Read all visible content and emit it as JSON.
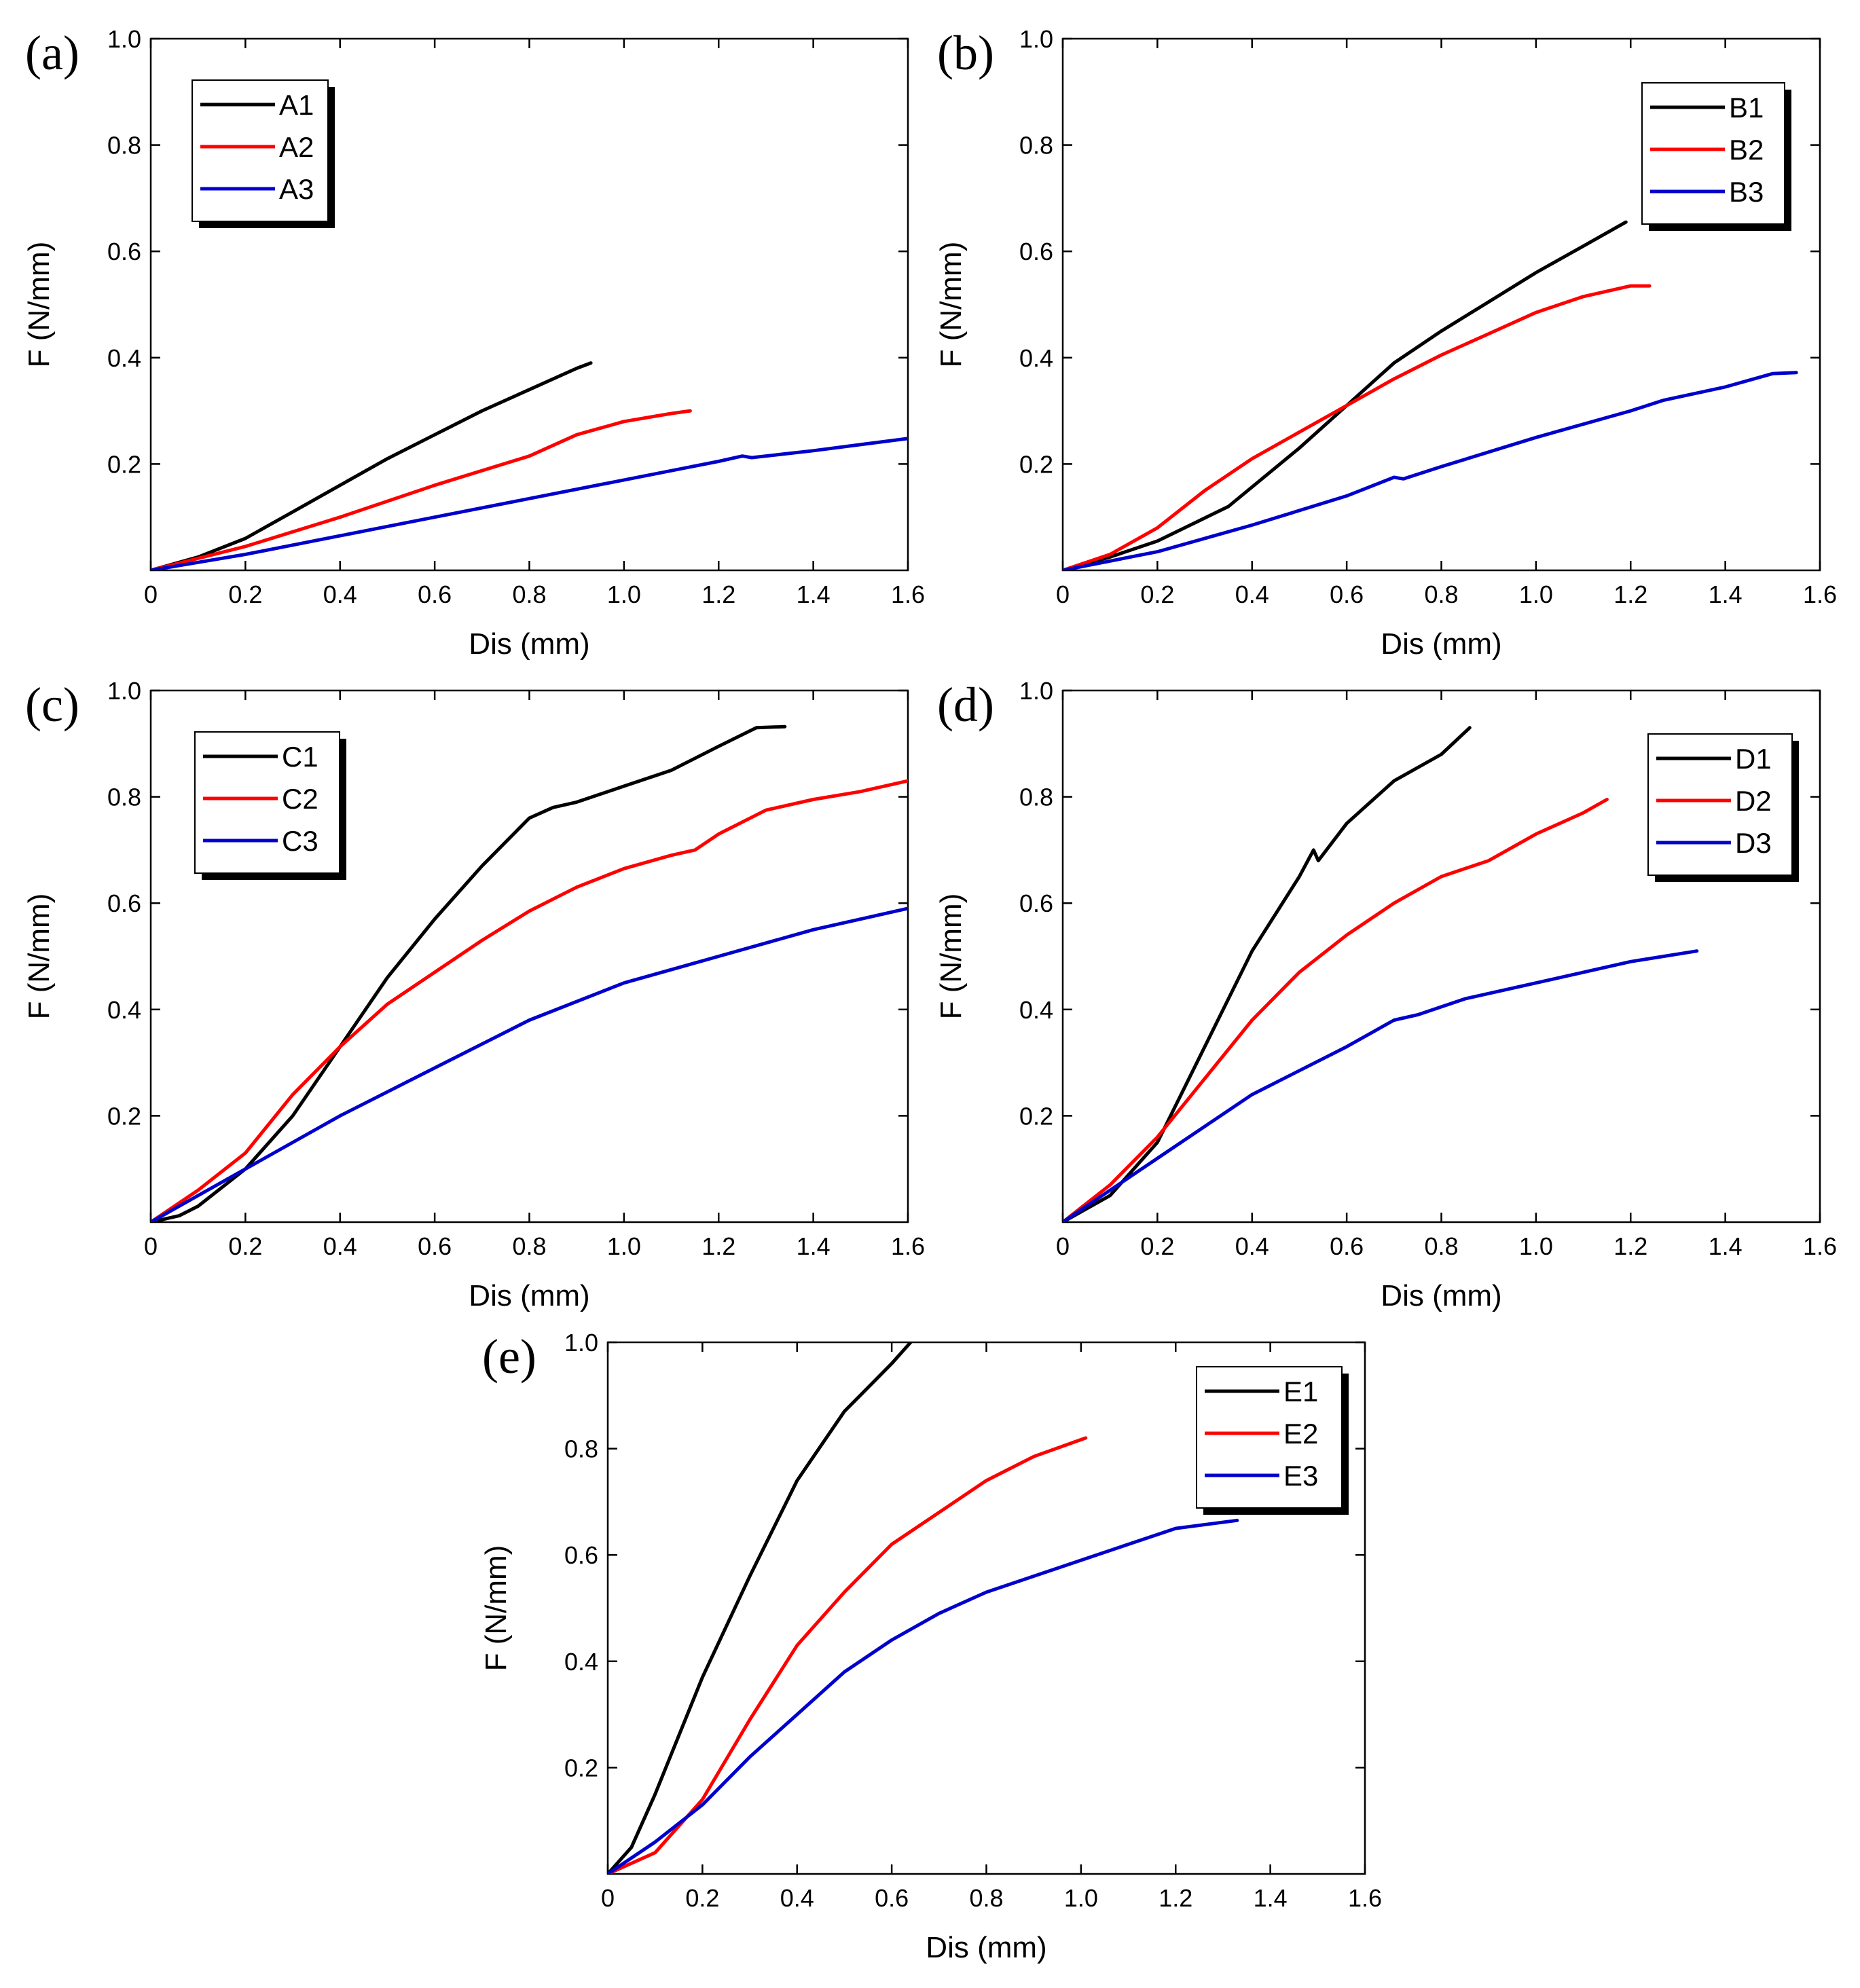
{
  "chart_data": [
    {
      "type": "line",
      "panel_label": "(a)",
      "title": "",
      "xlabel": "Dis (mm)",
      "ylabel": "F (N/mm)",
      "xlim": [
        0,
        1.6
      ],
      "ylim": [
        0,
        1.0
      ],
      "xticks": [
        "0",
        "0.2",
        "0.4",
        "0.6",
        "0.8",
        "1.0",
        "1.2",
        "1.4",
        "1.6"
      ],
      "yticks": [
        "0.2",
        "0.4",
        "0.6",
        "0.8",
        "1.0"
      ],
      "legend_position": "top-left",
      "series": [
        {
          "name": "A1",
          "color": "#000000",
          "points": [
            [
              0,
              0
            ],
            [
              0.1,
              0.025
            ],
            [
              0.2,
              0.06
            ],
            [
              0.3,
              0.11
            ],
            [
              0.4,
              0.16
            ],
            [
              0.5,
              0.21
            ],
            [
              0.6,
              0.255
            ],
            [
              0.7,
              0.3
            ],
            [
              0.8,
              0.34
            ],
            [
              0.9,
              0.38
            ],
            [
              0.93,
              0.39
            ]
          ]
        },
        {
          "name": "A2",
          "color": "#ff0000",
          "points": [
            [
              0,
              0
            ],
            [
              0.2,
              0.045
            ],
            [
              0.4,
              0.1
            ],
            [
              0.6,
              0.16
            ],
            [
              0.8,
              0.215
            ],
            [
              0.9,
              0.255
            ],
            [
              1.0,
              0.28
            ],
            [
              1.1,
              0.295
            ],
            [
              1.14,
              0.3
            ]
          ]
        },
        {
          "name": "A3",
          "color": "#0000cc",
          "points": [
            [
              0,
              0
            ],
            [
              0.2,
              0.03
            ],
            [
              0.4,
              0.065
            ],
            [
              0.6,
              0.1
            ],
            [
              0.8,
              0.135
            ],
            [
              1.0,
              0.17
            ],
            [
              1.2,
              0.205
            ],
            [
              1.25,
              0.215
            ],
            [
              1.27,
              0.212
            ],
            [
              1.4,
              0.225
            ],
            [
              1.6,
              0.248
            ]
          ]
        }
      ]
    },
    {
      "type": "line",
      "panel_label": "(b)",
      "title": "",
      "xlabel": "Dis (mm)",
      "ylabel": "F (N/mm)",
      "xlim": [
        0,
        1.6
      ],
      "ylim": [
        0,
        1.0
      ],
      "xticks": [
        "0",
        "0.2",
        "0.4",
        "0.6",
        "0.8",
        "1.0",
        "1.2",
        "1.4",
        "1.6"
      ],
      "yticks": [
        "0.2",
        "0.4",
        "0.6",
        "0.8",
        "1.0"
      ],
      "legend_position": "top-right",
      "series": [
        {
          "name": "B1",
          "color": "#000000",
          "points": [
            [
              0,
              0
            ],
            [
              0.1,
              0.025
            ],
            [
              0.2,
              0.055
            ],
            [
              0.35,
              0.12
            ],
            [
              0.5,
              0.23
            ],
            [
              0.6,
              0.31
            ],
            [
              0.7,
              0.39
            ],
            [
              0.8,
              0.45
            ],
            [
              0.9,
              0.505
            ],
            [
              1.0,
              0.56
            ],
            [
              1.1,
              0.61
            ],
            [
              1.19,
              0.655
            ]
          ]
        },
        {
          "name": "B2",
          "color": "#ff0000",
          "points": [
            [
              0,
              0
            ],
            [
              0.1,
              0.03
            ],
            [
              0.2,
              0.08
            ],
            [
              0.3,
              0.15
            ],
            [
              0.4,
              0.21
            ],
            [
              0.5,
              0.26
            ],
            [
              0.6,
              0.31
            ],
            [
              0.7,
              0.36
            ],
            [
              0.8,
              0.405
            ],
            [
              0.9,
              0.445
            ],
            [
              1.0,
              0.485
            ],
            [
              1.1,
              0.515
            ],
            [
              1.2,
              0.535
            ],
            [
              1.24,
              0.535
            ]
          ]
        },
        {
          "name": "B3",
          "color": "#0000cc",
          "points": [
            [
              0,
              0
            ],
            [
              0.2,
              0.035
            ],
            [
              0.4,
              0.085
            ],
            [
              0.6,
              0.14
            ],
            [
              0.7,
              0.175
            ],
            [
              0.72,
              0.172
            ],
            [
              0.8,
              0.195
            ],
            [
              1.0,
              0.25
            ],
            [
              1.2,
              0.3
            ],
            [
              1.27,
              0.32
            ],
            [
              1.4,
              0.345
            ],
            [
              1.5,
              0.37
            ],
            [
              1.55,
              0.372
            ]
          ]
        }
      ]
    },
    {
      "type": "line",
      "panel_label": "(c)",
      "title": "",
      "xlabel": "Dis (mm)",
      "ylabel": "F (N/mm)",
      "xlim": [
        0,
        1.6
      ],
      "ylim": [
        0,
        1.0
      ],
      "xticks": [
        "0",
        "0.2",
        "0.4",
        "0.6",
        "0.8",
        "1.0",
        "1.2",
        "1.4",
        "1.6"
      ],
      "yticks": [
        "0.2",
        "0.4",
        "0.6",
        "0.8",
        "1.0"
      ],
      "legend_position": "top-left",
      "series": [
        {
          "name": "C1",
          "color": "#000000",
          "points": [
            [
              0,
              0
            ],
            [
              0.06,
              0.012
            ],
            [
              0.1,
              0.03
            ],
            [
              0.2,
              0.1
            ],
            [
              0.3,
              0.2
            ],
            [
              0.4,
              0.33
            ],
            [
              0.5,
              0.46
            ],
            [
              0.6,
              0.57
            ],
            [
              0.7,
              0.67
            ],
            [
              0.8,
              0.76
            ],
            [
              0.85,
              0.78
            ],
            [
              0.9,
              0.79
            ],
            [
              1.0,
              0.82
            ],
            [
              1.1,
              0.85
            ],
            [
              1.2,
              0.895
            ],
            [
              1.28,
              0.93
            ],
            [
              1.34,
              0.932
            ]
          ]
        },
        {
          "name": "C2",
          "color": "#ff0000",
          "points": [
            [
              0,
              0
            ],
            [
              0.1,
              0.06
            ],
            [
              0.2,
              0.13
            ],
            [
              0.3,
              0.24
            ],
            [
              0.4,
              0.33
            ],
            [
              0.5,
              0.41
            ],
            [
              0.6,
              0.47
            ],
            [
              0.7,
              0.53
            ],
            [
              0.8,
              0.585
            ],
            [
              0.9,
              0.63
            ],
            [
              1.0,
              0.665
            ],
            [
              1.1,
              0.69
            ],
            [
              1.15,
              0.7
            ],
            [
              1.2,
              0.73
            ],
            [
              1.3,
              0.775
            ],
            [
              1.4,
              0.795
            ],
            [
              1.5,
              0.81
            ],
            [
              1.6,
              0.83
            ]
          ]
        },
        {
          "name": "C3",
          "color": "#0000cc",
          "points": [
            [
              0,
              0
            ],
            [
              0.2,
              0.1
            ],
            [
              0.4,
              0.2
            ],
            [
              0.6,
              0.29
            ],
            [
              0.8,
              0.38
            ],
            [
              1.0,
              0.45
            ],
            [
              1.2,
              0.5
            ],
            [
              1.4,
              0.55
            ],
            [
              1.6,
              0.59
            ]
          ]
        }
      ]
    },
    {
      "type": "line",
      "panel_label": "(d)",
      "title": "",
      "xlabel": "Dis (mm)",
      "ylabel": "F (N/mm)",
      "xlim": [
        0,
        1.6
      ],
      "ylim": [
        0,
        1.0
      ],
      "xticks": [
        "0",
        "0.2",
        "0.4",
        "0.6",
        "0.8",
        "1.0",
        "1.2",
        "1.4",
        "1.6"
      ],
      "yticks": [
        "0.2",
        "0.4",
        "0.6",
        "0.8",
        "1.0"
      ],
      "legend_position": "top-right",
      "series": [
        {
          "name": "D1",
          "color": "#000000",
          "points": [
            [
              0,
              0
            ],
            [
              0.1,
              0.05
            ],
            [
              0.2,
              0.15
            ],
            [
              0.3,
              0.33
            ],
            [
              0.4,
              0.51
            ],
            [
              0.5,
              0.65
            ],
            [
              0.53,
              0.7
            ],
            [
              0.54,
              0.68
            ],
            [
              0.6,
              0.75
            ],
            [
              0.7,
              0.83
            ],
            [
              0.8,
              0.88
            ],
            [
              0.86,
              0.93
            ]
          ]
        },
        {
          "name": "D2",
          "color": "#ff0000",
          "points": [
            [
              0,
              0
            ],
            [
              0.1,
              0.07
            ],
            [
              0.2,
              0.16
            ],
            [
              0.3,
              0.27
            ],
            [
              0.4,
              0.38
            ],
            [
              0.5,
              0.47
            ],
            [
              0.6,
              0.54
            ],
            [
              0.7,
              0.6
            ],
            [
              0.8,
              0.65
            ],
            [
              0.9,
              0.68
            ],
            [
              1.0,
              0.73
            ],
            [
              1.1,
              0.77
            ],
            [
              1.15,
              0.795
            ]
          ]
        },
        {
          "name": "D3",
          "color": "#0000cc",
          "points": [
            [
              0,
              0
            ],
            [
              0.2,
              0.12
            ],
            [
              0.4,
              0.24
            ],
            [
              0.6,
              0.33
            ],
            [
              0.7,
              0.38
            ],
            [
              0.75,
              0.39
            ],
            [
              0.8,
              0.405
            ],
            [
              0.85,
              0.42
            ],
            [
              1.0,
              0.45
            ],
            [
              1.2,
              0.49
            ],
            [
              1.34,
              0.51
            ]
          ]
        }
      ]
    },
    {
      "type": "line",
      "panel_label": "(e)",
      "title": "",
      "xlabel": "Dis (mm)",
      "ylabel": "F (N/mm)",
      "xlim": [
        0,
        1.6
      ],
      "ylim": [
        0,
        1.0
      ],
      "xticks": [
        "0",
        "0.2",
        "0.4",
        "0.6",
        "0.8",
        "1.0",
        "1.2",
        "1.4",
        "1.6"
      ],
      "yticks": [
        "0.2",
        "0.4",
        "0.6",
        "0.8",
        "1.0"
      ],
      "legend_position": "top-right",
      "series": [
        {
          "name": "E1",
          "color": "#000000",
          "points": [
            [
              0,
              0
            ],
            [
              0.05,
              0.05
            ],
            [
              0.1,
              0.15
            ],
            [
              0.2,
              0.37
            ],
            [
              0.3,
              0.56
            ],
            [
              0.4,
              0.74
            ],
            [
              0.5,
              0.87
            ],
            [
              0.6,
              0.96
            ],
            [
              0.64,
              1.0
            ]
          ]
        },
        {
          "name": "E2",
          "color": "#ff0000",
          "points": [
            [
              0,
              0
            ],
            [
              0.1,
              0.04
            ],
            [
              0.2,
              0.14
            ],
            [
              0.3,
              0.29
            ],
            [
              0.4,
              0.43
            ],
            [
              0.5,
              0.53
            ],
            [
              0.6,
              0.62
            ],
            [
              0.7,
              0.68
            ],
            [
              0.8,
              0.74
            ],
            [
              0.9,
              0.785
            ],
            [
              1.01,
              0.82
            ]
          ]
        },
        {
          "name": "E3",
          "color": "#0000cc",
          "points": [
            [
              0,
              0
            ],
            [
              0.1,
              0.06
            ],
            [
              0.2,
              0.13
            ],
            [
              0.3,
              0.22
            ],
            [
              0.4,
              0.3
            ],
            [
              0.5,
              0.38
            ],
            [
              0.6,
              0.44
            ],
            [
              0.7,
              0.49
            ],
            [
              0.8,
              0.53
            ],
            [
              0.9,
              0.56
            ],
            [
              1.0,
              0.59
            ],
            [
              1.1,
              0.62
            ],
            [
              1.2,
              0.65
            ],
            [
              1.33,
              0.665
            ]
          ]
        }
      ]
    }
  ]
}
